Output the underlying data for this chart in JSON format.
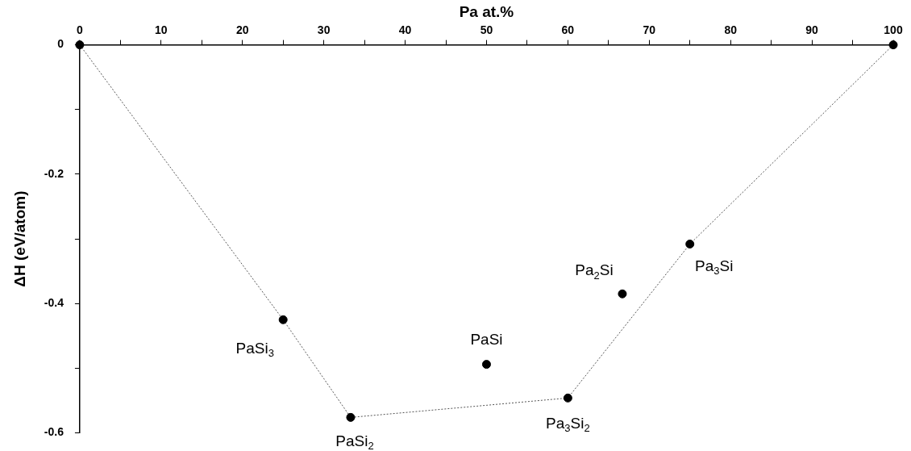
{
  "chart_data": {
    "type": "scatter",
    "xlabel": "Pa at.%",
    "ylabel": "ΔH (eV/atom)",
    "xlim": [
      0,
      100
    ],
    "ylim": [
      -0.6,
      0
    ],
    "xticks": [
      0,
      {
        "value": 5,
        "label": null
      },
      10,
      {
        "value": 15,
        "label": null
      },
      20,
      {
        "value": 25,
        "label": null
      },
      30,
      {
        "value": 35,
        "label": null
      },
      40,
      {
        "value": 45,
        "label": null
      },
      50,
      {
        "value": 55,
        "label": null
      },
      60,
      {
        "value": 65,
        "label": null
      },
      70,
      {
        "value": 75,
        "label": null
      },
      80,
      {
        "value": 85,
        "label": null
      },
      90,
      {
        "value": 95,
        "label": null
      },
      100
    ],
    "yticks": [
      -0.6,
      {
        "value": -0.5,
        "label": null
      },
      -0.4,
      {
        "value": -0.3,
        "label": null
      },
      -0.2,
      {
        "value": -0.1,
        "label": null
      },
      0
    ],
    "grid": false,
    "legend": false,
    "series": [
      {
        "type": "line",
        "color": "#555555",
        "line_style": "dotted",
        "marker": "none",
        "x": [
          0,
          25,
          33.3,
          60,
          75,
          100
        ],
        "values": [
          0,
          -0.425,
          -0.576,
          -0.546,
          -0.308,
          0
        ]
      },
      {
        "type": "scatter",
        "color": "#000000",
        "marker": "circle",
        "x": [
          0,
          25,
          33.3,
          50,
          60,
          66.7,
          75,
          100
        ],
        "values": [
          0,
          -0.425,
          -0.576,
          -0.494,
          -0.546,
          -0.385,
          -0.308,
          0
        ]
      }
    ],
    "annotations": [
      {
        "text": "PaSi$_{3}$",
        "x": 25,
        "y": -0.425
      },
      {
        "text": "PaSi$_{2}$",
        "x": 33.3,
        "y": -0.576
      },
      {
        "text": "PaSi",
        "x": 50,
        "y": -0.494
      },
      {
        "text": "Pa$_{3}$Si$_{2}$",
        "x": 60,
        "y": -0.546
      },
      {
        "text": "Pa$_{2}$Si",
        "x": 66.7,
        "y": -0.385
      },
      {
        "text": "Pa$_{3}$Si",
        "x": 75,
        "y": -0.308
      }
    ]
  }
}
